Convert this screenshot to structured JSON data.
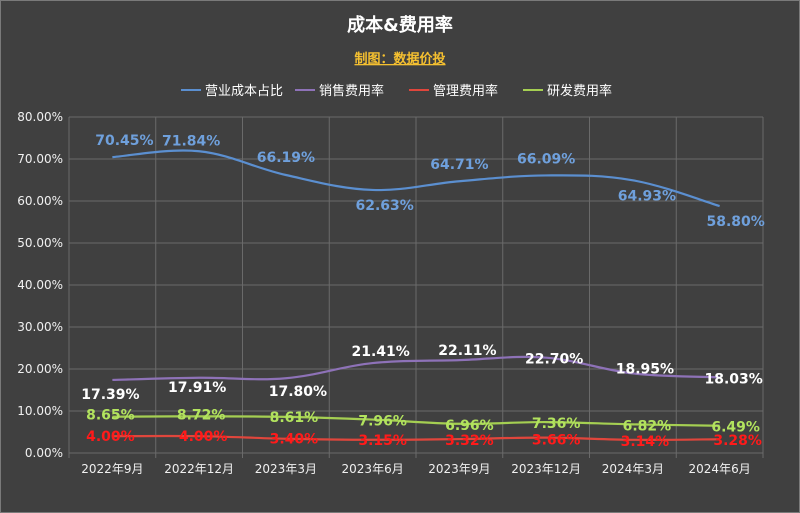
{
  "chart_data": {
    "type": "line",
    "title": "成本&费用率",
    "subtitle": "制图：数据价投",
    "categories": [
      "2022年9月",
      "2022年12月",
      "2023年3月",
      "2023年6月",
      "2023年9月",
      "2023年12月",
      "2024年3月",
      "2024年6月"
    ],
    "ylim": [
      0,
      80
    ],
    "yticks": [
      "0.00%",
      "10.00%",
      "20.00%",
      "30.00%",
      "40.00%",
      "50.00%",
      "60.00%",
      "70.00%",
      "80.00%"
    ],
    "grid": true,
    "legend_position": "top",
    "series": [
      {
        "name": "营业成本占比",
        "color": "#5b8fd0",
        "label_color": "#6fa0dc",
        "values": [
          70.45,
          71.84,
          66.19,
          62.63,
          64.71,
          66.09,
          64.93,
          58.8
        ],
        "labels": [
          "70.45%",
          "71.84%",
          "66.19%",
          "62.63%",
          "64.71%",
          "66.09%",
          "64.93%",
          "58.80%"
        ]
      },
      {
        "name": "销售费用率",
        "color": "#8e72b8",
        "label_color": "#ffffff",
        "values": [
          17.39,
          17.91,
          17.8,
          21.41,
          22.11,
          22.7,
          18.95,
          18.03
        ],
        "labels": [
          "17.39%",
          "17.91%",
          "17.80%",
          "21.41%",
          "22.11%",
          "22.70%",
          "18.95%",
          "18.03%"
        ]
      },
      {
        "name": "管理费用率",
        "color": "#e0463c",
        "label_color": "#ff1a1a",
        "values": [
          4.0,
          4.0,
          3.4,
          3.15,
          3.32,
          3.66,
          3.14,
          3.28
        ],
        "labels": [
          "4.00%",
          "4.00%",
          "3.40%",
          "3.15%",
          "3.32%",
          "3.66%",
          "3.14%",
          "3.28%"
        ]
      },
      {
        "name": "研发费用率",
        "color": "#a5cf52",
        "label_color": "#b2e35e",
        "values": [
          8.65,
          8.72,
          8.61,
          7.96,
          6.96,
          7.36,
          6.82,
          6.49
        ],
        "labels": [
          "8.65%",
          "8.72%",
          "8.61%",
          "7.96%",
          "6.96%",
          "7.36%",
          "6.82%",
          "6.49%"
        ]
      }
    ]
  }
}
